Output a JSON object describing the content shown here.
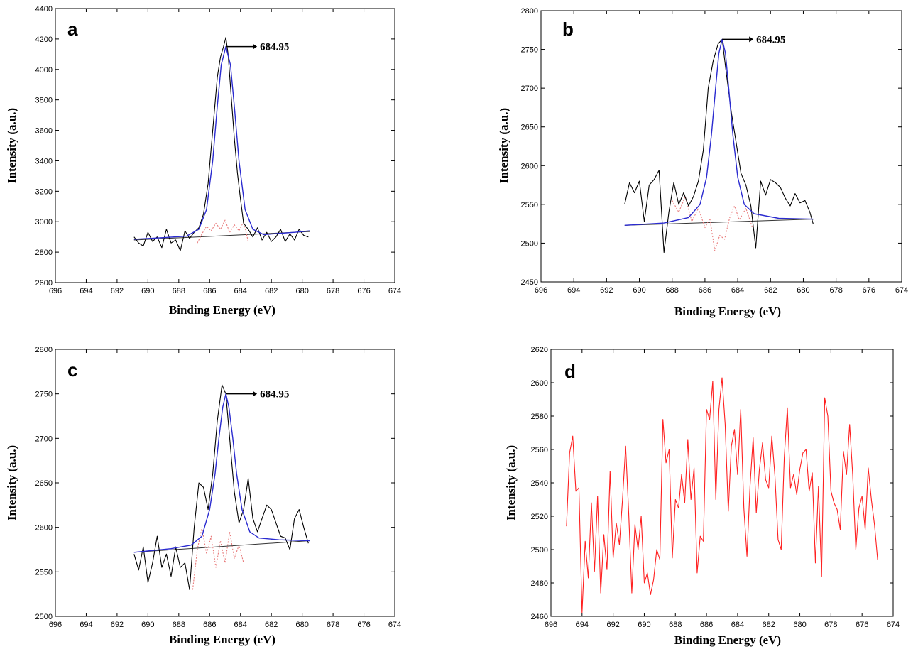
{
  "chart_data": [
    {
      "panel": "a",
      "type": "line",
      "xlabel": "Binding Energy (eV)",
      "ylabel": "Intensity (a.u.)",
      "xlim": [
        696,
        674
      ],
      "ylim": [
        2600,
        4400
      ],
      "xticks": [
        "696",
        "694",
        "692",
        "690",
        "688",
        "686",
        "684",
        "682",
        "680",
        "678",
        "676",
        "674"
      ],
      "yticks": [
        "2600",
        "2800",
        "3000",
        "3200",
        "3400",
        "3600",
        "3800",
        "4000",
        "4200",
        "4400"
      ],
      "annotation": "684.95",
      "peak": {
        "center": 684.95,
        "height": 4150
      },
      "baseline": {
        "x": [
          690.9,
          679.5
        ],
        "y": [
          2880,
          2935
        ]
      },
      "series": [
        {
          "role": "raw",
          "color": "#000000",
          "x": [
            690.9,
            690.6,
            690.3,
            690.0,
            689.7,
            689.4,
            689.1,
            688.8,
            688.5,
            688.2,
            687.9,
            687.6,
            687.3,
            687.0,
            686.7,
            686.4,
            686.1,
            685.8,
            685.5,
            685.3,
            685.1,
            684.95,
            684.8,
            684.6,
            684.4,
            684.2,
            684.0,
            683.8,
            683.5,
            683.2,
            682.9,
            682.6,
            682.3,
            682.0,
            681.7,
            681.4,
            681.1,
            680.8,
            680.5,
            680.2,
            679.9,
            679.6
          ],
          "y": [
            2900,
            2860,
            2840,
            2930,
            2870,
            2900,
            2830,
            2950,
            2860,
            2880,
            2810,
            2940,
            2890,
            2930,
            2960,
            3050,
            3250,
            3600,
            3950,
            4080,
            4150,
            4210,
            4100,
            3820,
            3550,
            3320,
            3150,
            2990,
            2950,
            2900,
            2960,
            2880,
            2930,
            2870,
            2900,
            2950,
            2870,
            2920,
            2880,
            2950,
            2910,
            2900
          ]
        },
        {
          "role": "fit",
          "color": "#2b2bd0",
          "x": [
            690.9,
            689.0,
            687.5,
            686.7,
            686.2,
            685.8,
            685.5,
            685.25,
            684.95,
            684.65,
            684.4,
            684.1,
            683.7,
            683.2,
            682.5,
            680.5,
            679.5
          ],
          "y": [
            2885,
            2895,
            2905,
            2950,
            3080,
            3400,
            3760,
            4030,
            4150,
            4030,
            3760,
            3400,
            3080,
            2950,
            2915,
            2930,
            2940
          ]
        },
        {
          "role": "residual",
          "color": "#e87a7a",
          "x": [
            686.8,
            686.5,
            686.2,
            685.9,
            685.6,
            685.3,
            685.0,
            684.7,
            684.4,
            684.1,
            683.8,
            683.5
          ],
          "y": [
            2860,
            2920,
            2970,
            2940,
            2990,
            2950,
            3010,
            2930,
            2980,
            2940,
            3000,
            2870
          ]
        }
      ]
    },
    {
      "panel": "b",
      "type": "line",
      "xlabel": "Binding Energy (eV)",
      "ylabel": "Intensity (a.u.)",
      "xlim": [
        696,
        674
      ],
      "ylim": [
        2450,
        2800
      ],
      "xticks": [
        "696",
        "694",
        "692",
        "690",
        "688",
        "686",
        "684",
        "682",
        "680",
        "678",
        "676",
        "674"
      ],
      "yticks": [
        "2450",
        "2500",
        "2550",
        "2600",
        "2650",
        "2700",
        "2750",
        "2800"
      ],
      "annotation": "684.95",
      "peak": {
        "center": 684.95,
        "height": 2763
      },
      "baseline": {
        "x": [
          690.9,
          679.4
        ],
        "y": [
          2523,
          2531
        ]
      },
      "series": [
        {
          "role": "raw",
          "color": "#000000",
          "x": [
            690.9,
            690.6,
            690.3,
            690.0,
            689.7,
            689.4,
            689.1,
            688.8,
            688.5,
            688.2,
            687.9,
            687.6,
            687.3,
            687.0,
            686.7,
            686.4,
            686.1,
            685.8,
            685.5,
            685.2,
            684.95,
            684.7,
            684.4,
            684.1,
            683.8,
            683.5,
            683.2,
            682.9,
            682.6,
            682.3,
            682.0,
            681.7,
            681.4,
            681.1,
            680.8,
            680.5,
            680.2,
            679.9,
            679.6,
            679.4
          ],
          "y": [
            2550,
            2578,
            2565,
            2580,
            2528,
            2575,
            2582,
            2594,
            2488,
            2540,
            2578,
            2550,
            2565,
            2548,
            2560,
            2580,
            2620,
            2700,
            2735,
            2757,
            2763,
            2720,
            2670,
            2630,
            2590,
            2575,
            2548,
            2494,
            2580,
            2562,
            2582,
            2578,
            2572,
            2558,
            2548,
            2564,
            2552,
            2555,
            2540,
            2525
          ]
        },
        {
          "role": "fit",
          "color": "#2b2bd0",
          "x": [
            690.9,
            688.5,
            687.0,
            686.3,
            685.9,
            685.6,
            685.35,
            685.15,
            684.95,
            684.75,
            684.55,
            684.3,
            684.0,
            683.6,
            683.0,
            681.5,
            679.4
          ],
          "y": [
            2523,
            2526,
            2533,
            2550,
            2585,
            2640,
            2700,
            2745,
            2763,
            2745,
            2700,
            2640,
            2585,
            2550,
            2538,
            2532,
            2531
          ]
        },
        {
          "role": "residual",
          "color": "#e87a7a",
          "x": [
            688.0,
            687.6,
            687.2,
            686.8,
            686.4,
            686.0,
            685.7,
            685.4,
            685.1,
            684.8,
            684.5,
            684.2,
            683.9,
            683.5,
            683.1
          ],
          "y": [
            2555,
            2540,
            2560,
            2528,
            2545,
            2520,
            2532,
            2490,
            2510,
            2505,
            2532,
            2548,
            2530,
            2545,
            2520
          ]
        }
      ]
    },
    {
      "panel": "c",
      "type": "line",
      "xlabel": "Binding Energy (eV)",
      "ylabel": "Intensity (a.u.)",
      "xlim": [
        696,
        674
      ],
      "ylim": [
        2500,
        2800
      ],
      "xticks": [
        "696",
        "694",
        "692",
        "690",
        "688",
        "686",
        "684",
        "682",
        "680",
        "678",
        "676",
        "674"
      ],
      "yticks": [
        "2500",
        "2550",
        "2600",
        "2650",
        "2700",
        "2750",
        "2800"
      ],
      "annotation": "684.95",
      "peak": {
        "center": 684.95,
        "height": 2750
      },
      "baseline": {
        "x": [
          690.9,
          679.5
        ],
        "y": [
          2572,
          2585
        ]
      },
      "series": [
        {
          "role": "raw",
          "color": "#000000",
          "x": [
            690.9,
            690.6,
            690.3,
            690.0,
            689.7,
            689.4,
            689.1,
            688.8,
            688.5,
            688.2,
            687.9,
            687.6,
            687.3,
            687.0,
            686.7,
            686.4,
            686.1,
            685.8,
            685.5,
            685.2,
            684.95,
            684.7,
            684.4,
            684.1,
            683.8,
            683.5,
            683.2,
            682.9,
            682.6,
            682.3,
            682.0,
            681.7,
            681.4,
            681.1,
            680.8,
            680.5,
            680.2,
            679.9,
            679.6
          ],
          "y": [
            2570,
            2552,
            2578,
            2538,
            2560,
            2590,
            2555,
            2570,
            2545,
            2578,
            2555,
            2560,
            2530,
            2600,
            2650,
            2645,
            2620,
            2660,
            2720,
            2760,
            2750,
            2700,
            2640,
            2605,
            2620,
            2655,
            2610,
            2595,
            2610,
            2625,
            2620,
            2605,
            2590,
            2588,
            2575,
            2610,
            2620,
            2600,
            2582
          ]
        },
        {
          "role": "fit",
          "color": "#2b2bd0",
          "x": [
            690.9,
            688.5,
            687.2,
            686.5,
            686.0,
            685.65,
            685.4,
            685.15,
            684.95,
            684.75,
            684.5,
            684.25,
            683.9,
            683.4,
            682.8,
            681.5,
            679.5
          ],
          "y": [
            2572,
            2576,
            2580,
            2590,
            2620,
            2660,
            2700,
            2735,
            2750,
            2735,
            2700,
            2660,
            2620,
            2595,
            2588,
            2586,
            2585
          ]
        },
        {
          "role": "residual",
          "color": "#e87a7a",
          "x": [
            687.1,
            686.8,
            686.5,
            686.2,
            685.9,
            685.6,
            685.3,
            685.0,
            684.7,
            684.4,
            684.1,
            683.8
          ],
          "y": [
            2530,
            2575,
            2600,
            2570,
            2590,
            2555,
            2585,
            2560,
            2595,
            2565,
            2580,
            2560
          ]
        }
      ]
    },
    {
      "panel": "d",
      "type": "line",
      "xlabel": "Binding Energy (eV)",
      "ylabel": "Intensity (a.u.)",
      "xlim": [
        696,
        674
      ],
      "ylim": [
        2460,
        2620
      ],
      "xticks": [
        "696",
        "694",
        "692",
        "690",
        "688",
        "686",
        "684",
        "682",
        "680",
        "678",
        "676",
        "674"
      ],
      "yticks": [
        "2460",
        "2480",
        "2500",
        "2520",
        "2540",
        "2560",
        "2580",
        "2600",
        "2620"
      ],
      "series": [
        {
          "role": "spectrum",
          "color": "#ff2020",
          "x": [
            695.0,
            694.8,
            694.6,
            694.4,
            694.2,
            694.0,
            693.8,
            693.6,
            693.4,
            693.2,
            693.0,
            692.8,
            692.6,
            692.4,
            692.2,
            692.0,
            691.8,
            691.6,
            691.4,
            691.2,
            691.0,
            690.8,
            690.6,
            690.4,
            690.2,
            690.0,
            689.8,
            689.6,
            689.4,
            689.2,
            689.0,
            688.8,
            688.6,
            688.4,
            688.2,
            688.0,
            687.8,
            687.6,
            687.4,
            687.2,
            687.0,
            686.8,
            686.6,
            686.4,
            686.2,
            686.0,
            685.8,
            685.6,
            685.4,
            685.2,
            685.0,
            684.8,
            684.6,
            684.4,
            684.2,
            684.0,
            683.8,
            683.6,
            683.4,
            683.2,
            683.0,
            682.8,
            682.6,
            682.4,
            682.2,
            682.0,
            681.8,
            681.6,
            681.4,
            681.2,
            681.0,
            680.8,
            680.6,
            680.4,
            680.2,
            680.0,
            679.8,
            679.6,
            679.4,
            679.2,
            679.0,
            678.8,
            678.6,
            678.4,
            678.2,
            678.0,
            677.8,
            677.6,
            677.4,
            677.2,
            677.0,
            676.8,
            676.6,
            676.4,
            676.2,
            676.0,
            675.8,
            675.6,
            675.4,
            675.2,
            675.0
          ],
          "y": [
            2514,
            2558,
            2568,
            2535,
            2537,
            2462,
            2505,
            2483,
            2528,
            2487,
            2532,
            2474,
            2509,
            2488,
            2547,
            2495,
            2516,
            2503,
            2530,
            2562,
            2522,
            2474,
            2515,
            2500,
            2520,
            2480,
            2486,
            2473,
            2482,
            2500,
            2494,
            2578,
            2552,
            2560,
            2495,
            2530,
            2525,
            2545,
            2528,
            2566,
            2530,
            2549,
            2486,
            2508,
            2505,
            2584,
            2578,
            2601,
            2530,
            2584,
            2603,
            2575,
            2523,
            2562,
            2572,
            2545,
            2584,
            2525,
            2496,
            2538,
            2567,
            2522,
            2548,
            2564,
            2542,
            2537,
            2568,
            2544,
            2506,
            2500,
            2555,
            2585,
            2537,
            2545,
            2533,
            2548,
            2558,
            2560,
            2535,
            2546,
            2492,
            2538,
            2484,
            2591,
            2580,
            2535,
            2528,
            2524,
            2512,
            2559,
            2545,
            2575,
            2545,
            2500,
            2525,
            2532,
            2512,
            2549,
            2530,
            2515,
            2494
          ]
        }
      ]
    }
  ]
}
